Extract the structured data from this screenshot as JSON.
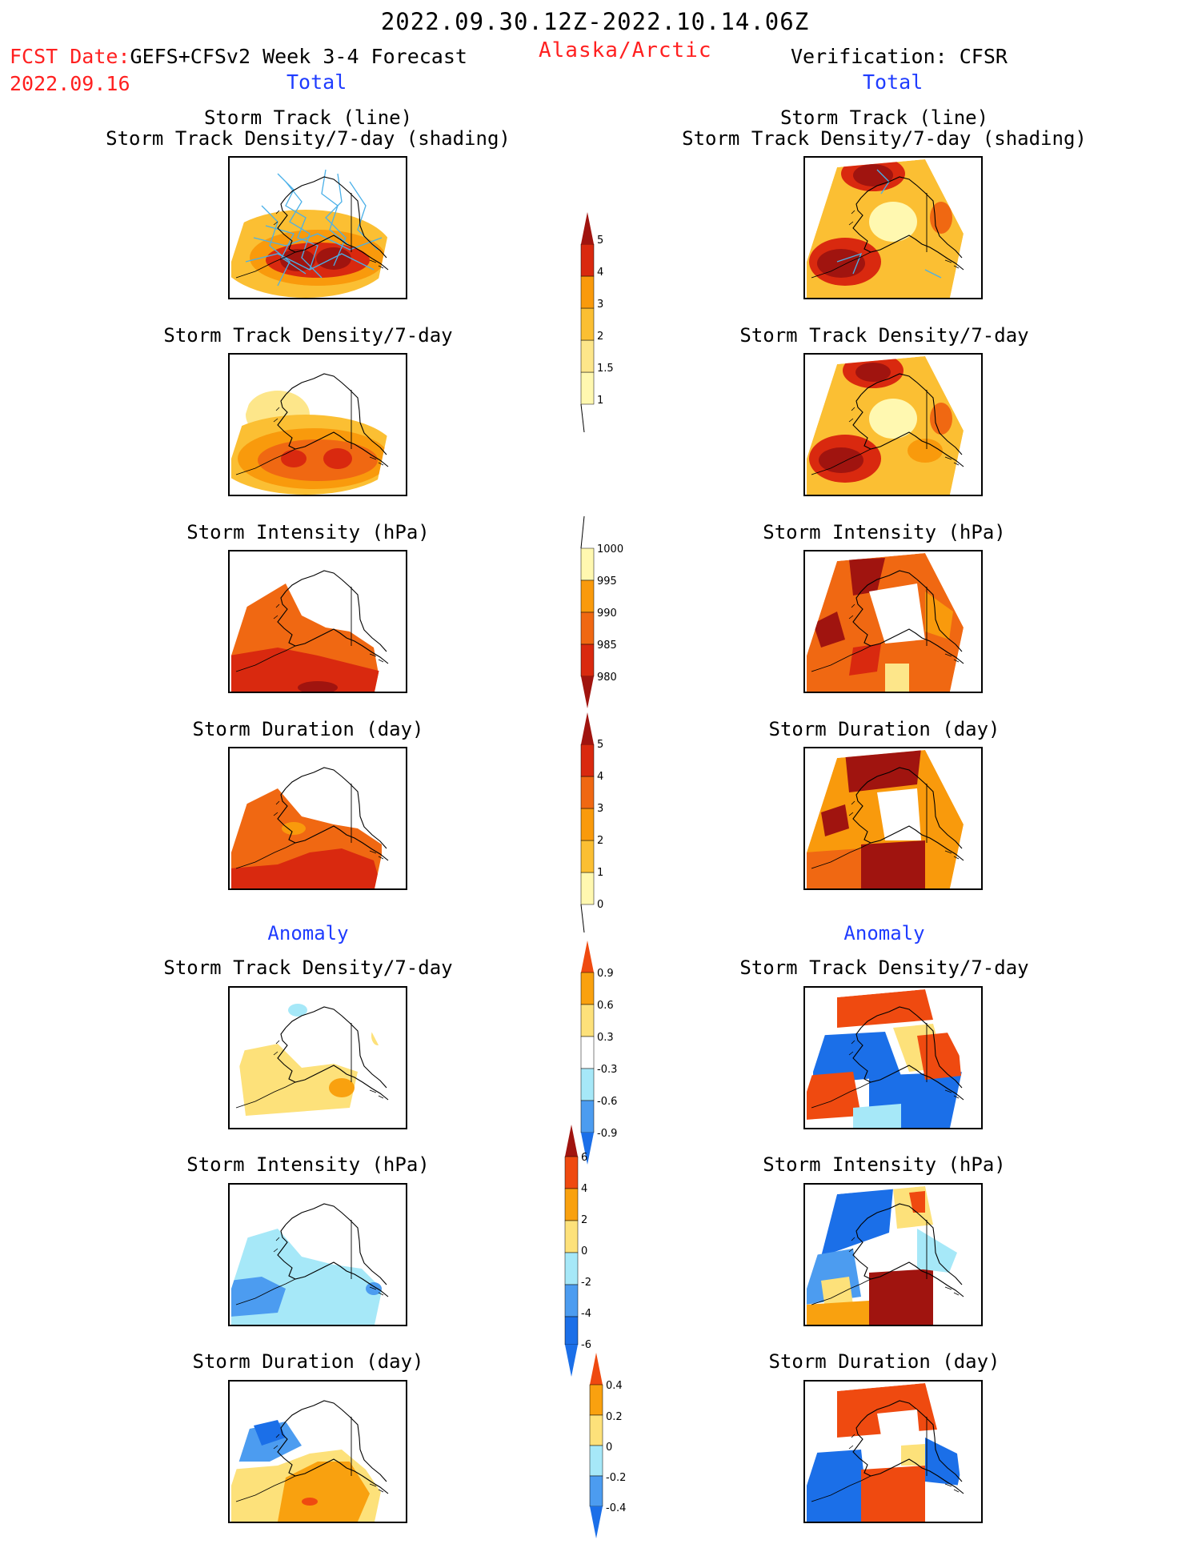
{
  "header": {
    "period": "2022.09.30.12Z-2022.10.14.06Z",
    "fcst_label": "FCST Date:",
    "fcst_model": "GEFS+CFSv2 Week 3-4 Forecast",
    "fcst_date": "2022.09.16",
    "region": "Alaska/Arctic",
    "verification": "Verification: CFSR"
  },
  "sections": {
    "total": "Total",
    "anomaly": "Anomaly"
  },
  "panels": {
    "track_line": "Storm Track (line)",
    "track_shading": "Storm Track Density/7-day (shading)",
    "density": "Storm Track Density/7-day",
    "intensity": "Storm Intensity (hPa)",
    "duration": "Storm Duration (day)"
  },
  "colorbars": {
    "density_total": [
      "1",
      "1.5",
      "2",
      "3",
      "4",
      "5"
    ],
    "intensity_total": [
      "1000",
      "995",
      "990",
      "985",
      "980"
    ],
    "duration_total": [
      "0",
      "1",
      "2",
      "3",
      "4",
      "5"
    ],
    "density_anom": [
      "-0.9",
      "-0.6",
      "-0.3",
      "0.3",
      "0.6",
      "0.9"
    ],
    "intensity_anom": [
      "-6",
      "-4",
      "-2",
      "0",
      "2",
      "4",
      "6"
    ],
    "duration_anom": [
      "-0.4",
      "-0.2",
      "0",
      "0.2",
      "0.4"
    ]
  },
  "colors": {
    "title_red": "#ff2020",
    "section_blue": "#1f3cff",
    "warm_scale": [
      "#fff8b0",
      "#fde68a",
      "#fbbf33",
      "#f99a0c",
      "#f06812",
      "#d9290f",
      "#a0140f"
    ],
    "anom_scale": [
      "#1b6fe8",
      "#4c9cf0",
      "#a6e8f8",
      "#ffffff",
      "#fde17a",
      "#f9a10f",
      "#ef4a10"
    ]
  }
}
